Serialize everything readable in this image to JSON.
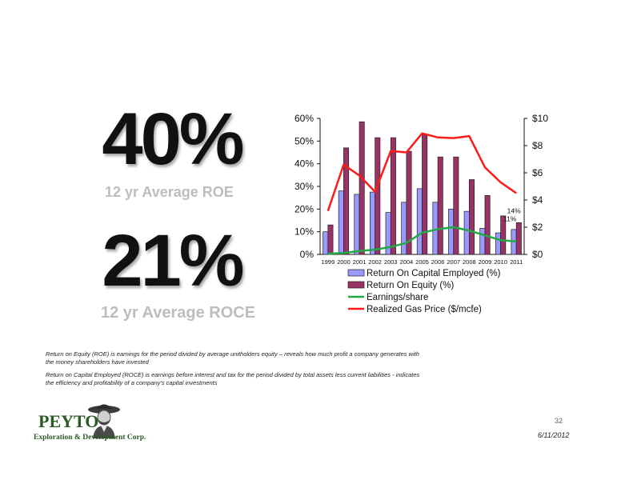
{
  "stats": {
    "roe_value": "40%",
    "roe_label": "12 yr Average ROE",
    "roce_value": "21%",
    "roce_label": "12 yr Average ROCE"
  },
  "chart_data": {
    "type": "bar",
    "categories": [
      "1999",
      "2000",
      "2001",
      "2002",
      "2003",
      "2004",
      "2005",
      "2006",
      "2007",
      "2008",
      "2009",
      "2010",
      "2011"
    ],
    "y_left": {
      "ticks": [
        "0%",
        "10%",
        "20%",
        "30%",
        "40%",
        "50%",
        "60%"
      ],
      "ylim": [
        0,
        60
      ]
    },
    "y_right": {
      "ticks": [
        "$0",
        "$2",
        "$4",
        "$6",
        "$8",
        "$10"
      ],
      "ylim": [
        0,
        10
      ]
    },
    "series": [
      {
        "name": "Return On Capital Employed (%)",
        "kind": "bar",
        "axis": "left",
        "color": "#9999ff",
        "values": [
          10,
          28,
          26.5,
          27.5,
          18.5,
          23,
          29,
          23,
          20,
          19,
          11.5,
          9.5,
          11
        ]
      },
      {
        "name": "Return On Equity (%)",
        "kind": "bar",
        "axis": "left",
        "color": "#993366",
        "values": [
          13,
          47,
          58.5,
          51.5,
          51.5,
          45.5,
          53,
          43,
          43,
          33,
          26,
          17,
          14
        ]
      },
      {
        "name": "Earnings/share",
        "kind": "line",
        "axis": "right",
        "color": "#22a845",
        "values": [
          0.05,
          0.1,
          0.25,
          0.35,
          0.55,
          0.85,
          1.6,
          1.85,
          2.0,
          1.75,
          1.4,
          1.05,
          0.95
        ]
      },
      {
        "name": "Realized Gas Price ($/mcfe)",
        "kind": "line",
        "axis": "right",
        "color": "#ff1a1a",
        "values": [
          3.2,
          6.6,
          5.8,
          4.6,
          7.6,
          7.5,
          8.9,
          8.6,
          8.55,
          8.7,
          6.4,
          5.3,
          4.5
        ]
      }
    ],
    "annotations": [
      "14%",
      "11%"
    ]
  },
  "notes": {
    "roe": "Return on Equity (ROE) is earnings for the period divided by average unitholders equity – reveals how much profit a company generates with the money shareholders have invested",
    "roce": "Return on Capital Employed (ROCE) is earnings before interest and tax for the period divided by total assets less current liabilities - indicates the efficiency and profitability of a company's capital investments"
  },
  "footer": {
    "page_number": "32",
    "date": "6/11/2012",
    "logo_word": "PEYTO",
    "logo_tagline": "Exploration & Development Corp."
  }
}
